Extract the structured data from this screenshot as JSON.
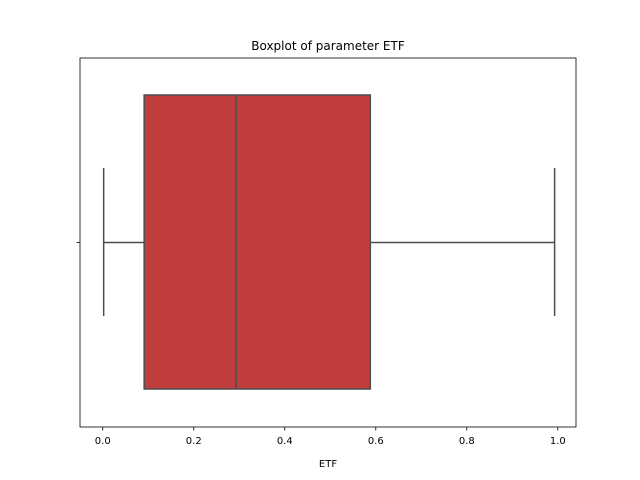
{
  "chart_data": {
    "type": "boxplot",
    "title": "Boxplot of parameter ETF",
    "xlabel": "ETF",
    "ylabel": "",
    "orientation": "horizontal",
    "xlim": [
      -0.05,
      1.04
    ],
    "x_ticks": [
      0.0,
      0.2,
      0.4,
      0.6,
      0.8,
      1.0
    ],
    "x_tick_labels": [
      "0.0",
      "0.2",
      "0.4",
      "0.6",
      "0.8",
      "1.0"
    ],
    "grid": false,
    "series": [
      {
        "whisker_low": 0.002,
        "q1": 0.091,
        "median": 0.293,
        "q3": 0.588,
        "whisker_high": 0.993
      }
    ],
    "colors": {
      "box_fill": "#c03d3e",
      "box_edge": "#4d4d4d",
      "axes": "#000000"
    }
  }
}
